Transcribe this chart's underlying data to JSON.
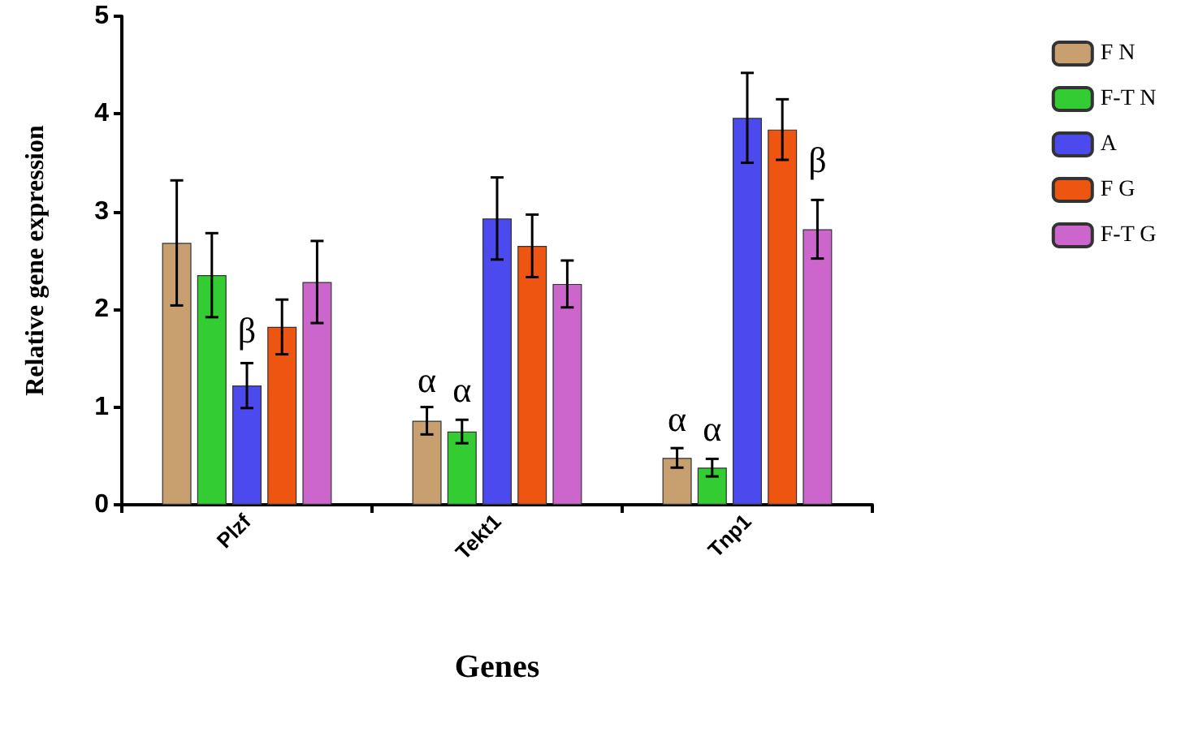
{
  "chart_data": {
    "type": "bar",
    "xlabel": "Genes",
    "ylabel": "Relative gene expression",
    "categories": [
      "Plzf",
      "Tekt1",
      "Tnp1"
    ],
    "series": [
      {
        "name": "F N",
        "color": "#c8a070",
        "values": [
          2.68,
          0.86,
          0.48
        ],
        "errors": [
          0.64,
          0.14,
          0.1
        ]
      },
      {
        "name": "F-T N",
        "color": "#33cc33",
        "values": [
          2.35,
          0.75,
          0.38
        ],
        "errors": [
          0.43,
          0.12,
          0.09
        ]
      },
      {
        "name": "A",
        "color": "#4a4aee",
        "values": [
          1.22,
          2.93,
          3.96
        ],
        "errors": [
          0.23,
          0.42,
          0.46
        ]
      },
      {
        "name": "F G",
        "color": "#ee5511",
        "values": [
          1.82,
          2.65,
          3.84
        ],
        "errors": [
          0.28,
          0.32,
          0.31
        ]
      },
      {
        "name": "F-T G",
        "color": "#cc66cc",
        "values": [
          2.28,
          2.26,
          2.82
        ],
        "errors": [
          0.42,
          0.24,
          0.3
        ]
      }
    ],
    "ylim": [
      0,
      5
    ],
    "yticks": [
      0,
      1,
      2,
      3,
      4,
      5
    ],
    "grid": false,
    "legend": "top right",
    "annotations": [
      {
        "text": "β",
        "x": "Plzf",
        "y": 1.6
      },
      {
        "text": "α",
        "x": "Tekt1",
        "y": 1.1
      },
      {
        "text": "α",
        "x": "Tekt1",
        "y": 1.0
      },
      {
        "text": "α",
        "x": "Tnp1",
        "y": 0.7
      },
      {
        "text": "α",
        "x": "Tnp1",
        "y": 0.6
      },
      {
        "text": "β",
        "x": "Tnp1",
        "y": 3.35
      }
    ]
  }
}
